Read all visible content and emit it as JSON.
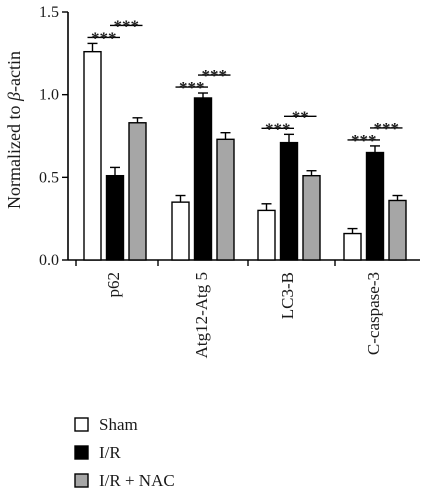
{
  "chart_data": {
    "type": "bar",
    "ylabel_prefix": "Normalized to ",
    "ylabel_symbol": "β",
    "ylabel_suffix": "-actin",
    "ylim": [
      0,
      1.5
    ],
    "yticks": [
      "0.0",
      "0.5",
      "1.0",
      "1.5"
    ],
    "categories": [
      "p62",
      "Atg12-Atg 5",
      "LC3-B",
      "C-caspase-3"
    ],
    "series": [
      {
        "name": "Sham",
        "values": [
          1.26,
          0.35,
          0.3,
          0.16
        ],
        "errors": [
          0.05,
          0.04,
          0.04,
          0.03
        ],
        "color": "#ffffff"
      },
      {
        "name": "I/R",
        "values": [
          0.51,
          0.98,
          0.71,
          0.65
        ],
        "errors": [
          0.05,
          0.03,
          0.05,
          0.04
        ],
        "color": "#000000"
      },
      {
        "name": "I/R + NAC",
        "values": [
          0.83,
          0.73,
          0.51,
          0.36
        ],
        "errors": [
          0.03,
          0.04,
          0.03,
          0.03
        ],
        "color": "#a6a6a6"
      }
    ],
    "significance": [
      {
        "category": 0,
        "from": 0,
        "to": 1,
        "label": "***",
        "level": 0
      },
      {
        "category": 0,
        "from": 1,
        "to": 2,
        "label": "***",
        "level": 1
      },
      {
        "category": 1,
        "from": 0,
        "to": 1,
        "label": "***",
        "level": 0
      },
      {
        "category": 1,
        "from": 1,
        "to": 2,
        "label": "***",
        "level": 1
      },
      {
        "category": 2,
        "from": 0,
        "to": 1,
        "label": "***",
        "level": 0
      },
      {
        "category": 2,
        "from": 1,
        "to": 2,
        "label": "**",
        "level": 1
      },
      {
        "category": 3,
        "from": 0,
        "to": 1,
        "label": "***",
        "level": 0
      },
      {
        "category": 3,
        "from": 1,
        "to": 2,
        "label": "***",
        "level": 1
      }
    ],
    "legend_position": "bottom-left"
  }
}
